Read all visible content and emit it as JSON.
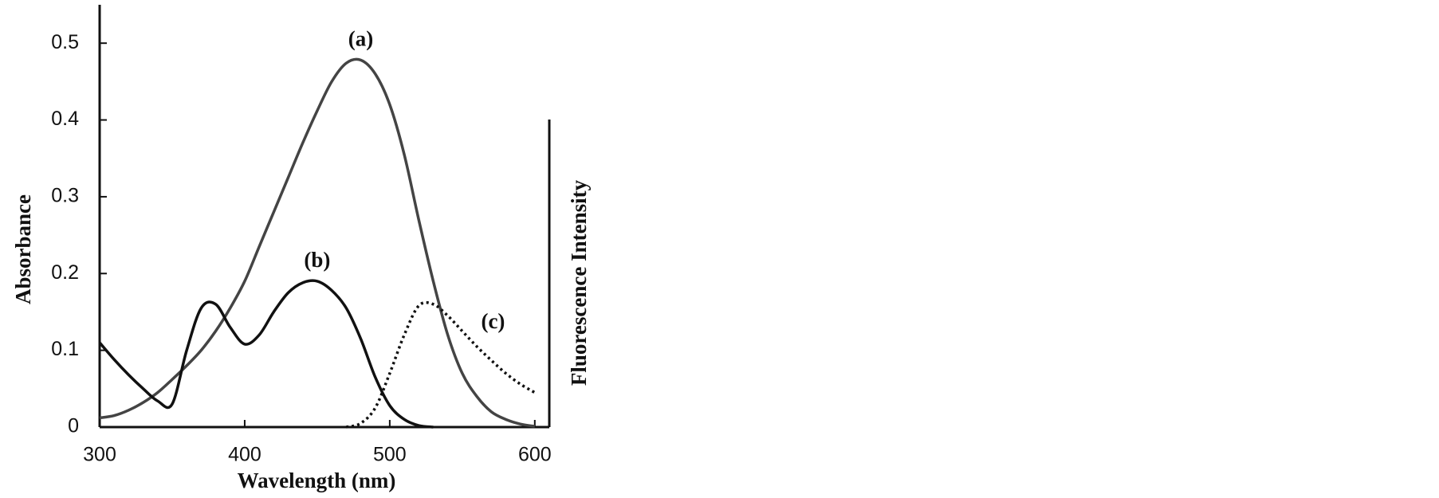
{
  "chart_data": {
    "type": "line",
    "x_label": "Wavelength (nm)",
    "y_label": "Absorbance",
    "y2_label": "Fluorescence Intensity",
    "x": [
      300,
      310,
      320,
      330,
      340,
      350,
      360,
      370,
      380,
      390,
      400,
      410,
      420,
      430,
      440,
      450,
      460,
      470,
      480,
      490,
      500,
      510,
      520,
      530,
      540,
      550,
      560,
      570,
      580,
      590,
      600
    ],
    "series": [
      {
        "name": "(a)",
        "color": "#444444",
        "style": "solid",
        "values": [
          0.012,
          0.015,
          0.022,
          0.032,
          0.045,
          0.062,
          0.08,
          0.1,
          0.125,
          0.155,
          0.19,
          0.235,
          0.28,
          0.325,
          0.37,
          0.412,
          0.45,
          0.474,
          0.478,
          0.46,
          0.42,
          0.355,
          0.27,
          0.19,
          0.12,
          0.07,
          0.04,
          0.02,
          0.01,
          0.004,
          0.001
        ]
      },
      {
        "name": "(b)",
        "color": "#111111",
        "style": "solid",
        "values": [
          0.11,
          0.088,
          0.068,
          0.05,
          0.034,
          0.03,
          0.1,
          0.155,
          0.16,
          0.13,
          0.108,
          0.12,
          0.15,
          0.175,
          0.188,
          0.19,
          0.178,
          0.155,
          0.115,
          0.065,
          0.028,
          0.01,
          0.002,
          0,
          null,
          null,
          null,
          null,
          null,
          null,
          null
        ]
      },
      {
        "name": "(c)",
        "color": "#111111",
        "style": "dotted",
        "values": [
          null,
          null,
          null,
          null,
          null,
          null,
          null,
          null,
          null,
          null,
          null,
          null,
          null,
          null,
          null,
          null,
          null,
          0,
          0.005,
          0.025,
          0.07,
          0.12,
          0.158,
          0.16,
          0.145,
          0.125,
          0.105,
          0.087,
          0.07,
          0.056,
          0.045
        ]
      }
    ],
    "xlim": [
      300,
      610
    ],
    "xticks": [
      300,
      400,
      500,
      600
    ],
    "ylim": [
      0,
      0.55
    ],
    "yticks": [
      0,
      0.1,
      0.2,
      0.3,
      0.4,
      0.5
    ]
  }
}
